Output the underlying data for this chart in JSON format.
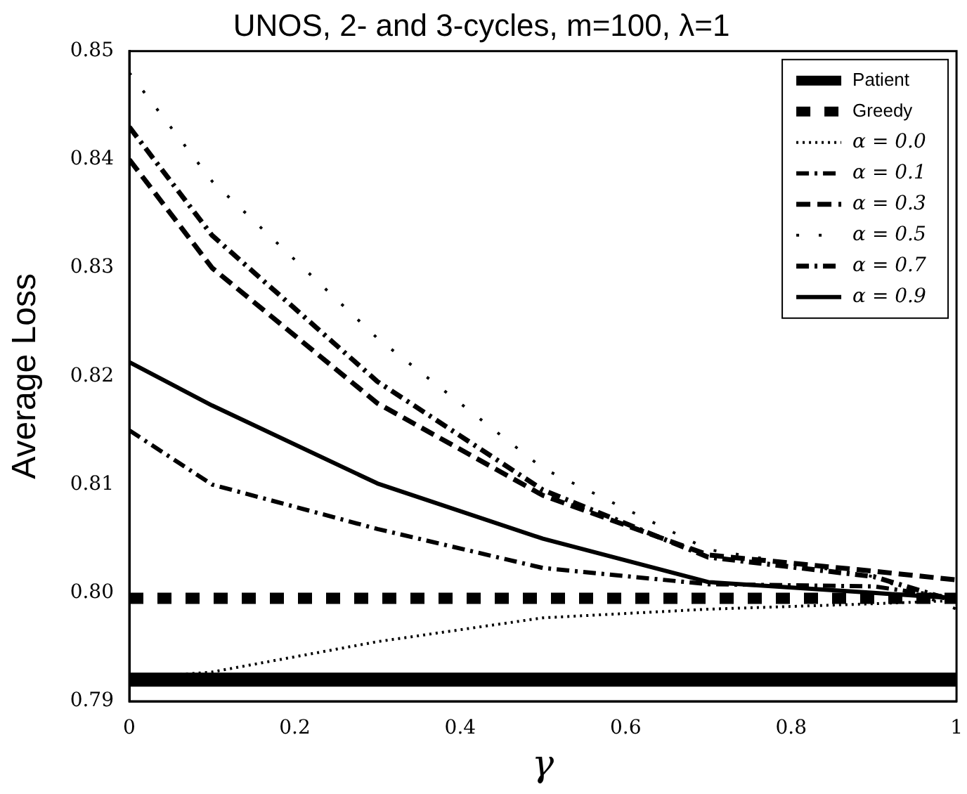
{
  "chart_data": {
    "type": "line",
    "title": "UNOS, 2- and 3-cycles, m=100, λ=1",
    "xlabel": "γ",
    "ylabel": "Average Loss",
    "x": [
      0,
      0.1,
      0.3,
      0.5,
      0.7,
      0.9,
      1
    ],
    "series": [
      {
        "name": "Patient",
        "color": "#000000",
        "line_style": "solid",
        "values": [
          0.792,
          0.792,
          0.792,
          0.792,
          0.792,
          0.792,
          0.792
        ]
      },
      {
        "name": "Greedy",
        "color": "#000000",
        "line_style": "dashed",
        "values": [
          0.7995,
          0.7995,
          0.7995,
          0.7995,
          0.7995,
          0.7995,
          0.7995
        ]
      },
      {
        "name": "α = 0.0",
        "color": "#000000",
        "line_style": "dotted",
        "values": [
          0.7921,
          0.7927,
          0.7955,
          0.7977,
          0.7985,
          0.799,
          0.7993
        ]
      },
      {
        "name": "α = 0.1",
        "color": "#000000",
        "line_style": "dashdot",
        "values": [
          0.815,
          0.81,
          0.8059,
          0.8023,
          0.8008,
          0.8006,
          0.7995
        ]
      },
      {
        "name": "α = 0.3",
        "color": "#000000",
        "line_style": "dashed",
        "values": [
          0.84,
          0.83,
          0.8175,
          0.809,
          0.8035,
          0.802,
          0.8012
        ]
      },
      {
        "name": "α = 0.5",
        "color": "#000000",
        "line_style": "dotted",
        "values": [
          0.848,
          0.838,
          0.8235,
          0.8115,
          0.804,
          0.8015,
          0.7985
        ]
      },
      {
        "name": "α = 0.7",
        "color": "#000000",
        "line_style": "dashdot",
        "values": [
          0.843,
          0.833,
          0.8195,
          0.8095,
          0.8033,
          0.8015,
          0.7992
        ]
      },
      {
        "name": "α = 0.9",
        "color": "#000000",
        "line_style": "solid",
        "values": [
          0.8213,
          0.8173,
          0.8101,
          0.805,
          0.801,
          0.8,
          0.7995
        ]
      }
    ],
    "xlim": [
      0,
      1
    ],
    "xticks": [
      0,
      0.2,
      0.4,
      0.6,
      0.8,
      1
    ],
    "ylim": [
      0.79,
      0.85
    ],
    "yticks": [
      0.79,
      {
        "value": 0.8,
        "label": "0.80"
      },
      0.81,
      0.82,
      0.83,
      0.84,
      0.85
    ],
    "grid": false,
    "legend": "top right",
    "marker": "none"
  }
}
